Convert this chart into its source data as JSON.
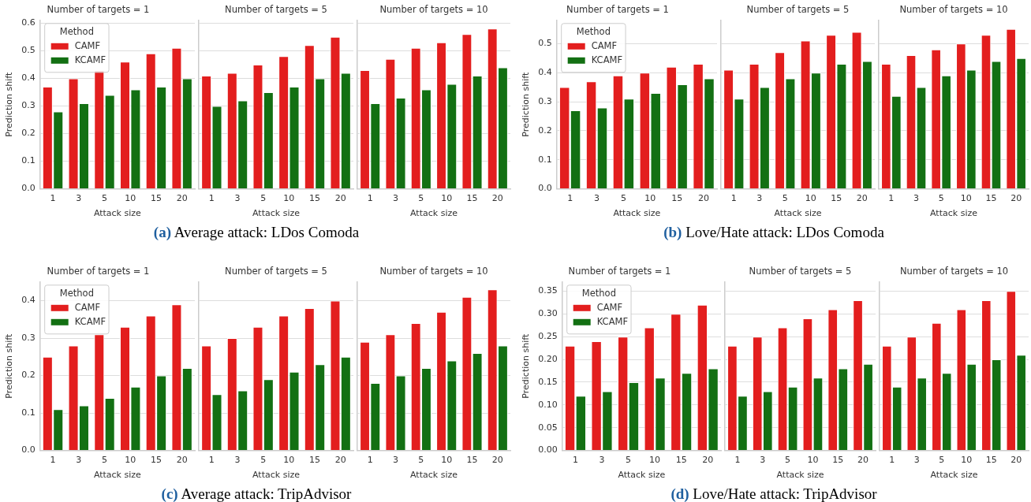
{
  "chart_data": [
    {
      "type": "bar",
      "title": "Number of targets = 1",
      "xlabel": "Attack size",
      "ylabel": "Prediction shift",
      "categories": [
        "1",
        "3",
        "5",
        "10",
        "15",
        "20"
      ],
      "series": [
        {
          "name": "CAMF",
          "color": "#e31e1e",
          "values": [
            0.37,
            0.4,
            0.43,
            0.46,
            0.49,
            0.51
          ]
        },
        {
          "name": "KCAMF",
          "color": "#137013",
          "values": [
            0.28,
            0.31,
            0.34,
            0.36,
            0.37,
            0.4
          ]
        }
      ],
      "ylim": [
        0,
        0.61
      ],
      "yticks": [
        {
          "value": 0,
          "label": "0.0"
        },
        0.1,
        0.2,
        0.3,
        0.4,
        0.5,
        0.6
      ],
      "grid": "y",
      "legend": "top left",
      "legend_title": "Method",
      "annotations": [
        "(a) Average attack: LDos Comoda"
      ]
    },
    {
      "type": "bar",
      "title": "Number of targets = 5",
      "xlabel": "Attack size",
      "categories": [
        "1",
        "3",
        "5",
        "10",
        "15",
        "20"
      ],
      "series": [
        {
          "color": "#e31e1e",
          "values": [
            0.41,
            0.42,
            0.45,
            0.48,
            0.52,
            0.55
          ]
        },
        {
          "color": "#137013",
          "values": [
            0.3,
            0.32,
            0.35,
            0.37,
            0.4,
            0.42
          ]
        }
      ],
      "ylim": [
        0,
        0.61
      ],
      "yticks": [
        0,
        0.1,
        0.2,
        0.3,
        0.4,
        0.5,
        0.6
      ],
      "grid": "y",
      "tick_labels": "x"
    },
    {
      "type": "bar",
      "title": "Number of targets = 10",
      "xlabel": "Attack size",
      "categories": [
        "1",
        "3",
        "5",
        "10",
        "15",
        "20"
      ],
      "series": [
        {
          "color": "#e31e1e",
          "values": [
            0.43,
            0.47,
            0.51,
            0.53,
            0.56,
            0.58
          ]
        },
        {
          "color": "#137013",
          "values": [
            0.31,
            0.33,
            0.36,
            0.38,
            0.41,
            0.44
          ]
        }
      ],
      "ylim": [
        0,
        0.61
      ],
      "yticks": [
        0,
        0.1,
        0.2,
        0.3,
        0.4,
        0.5,
        0.6
      ],
      "grid": "y",
      "tick_labels": "x"
    },
    {
      "type": "bar",
      "title": "Number of targets = 1",
      "xlabel": "Attack size",
      "ylabel": "Prediction shift",
      "categories": [
        "1",
        "3",
        "5",
        "10",
        "15",
        "20"
      ],
      "series": [
        {
          "name": "CAMF",
          "color": "#e31e1e",
          "values": [
            0.35,
            0.37,
            0.39,
            0.4,
            0.42,
            0.43
          ]
        },
        {
          "name": "KCAMF",
          "color": "#137013",
          "values": [
            0.27,
            0.28,
            0.31,
            0.33,
            0.36,
            0.38
          ]
        }
      ],
      "ylim": [
        0,
        0.58
      ],
      "yticks": [
        {
          "value": 0,
          "label": "0.0"
        },
        0.1,
        0.2,
        0.3,
        0.4,
        0.5
      ],
      "grid": "y",
      "legend": "top left",
      "legend_title": "Method",
      "annotations": [
        "(b) Love/Hate attack: LDos Comoda"
      ]
    },
    {
      "type": "bar",
      "title": "Number of targets = 5",
      "xlabel": "Attack size",
      "categories": [
        "1",
        "3",
        "5",
        "10",
        "15",
        "20"
      ],
      "series": [
        {
          "color": "#e31e1e",
          "values": [
            0.41,
            0.43,
            0.47,
            0.51,
            0.53,
            0.54
          ]
        },
        {
          "color": "#137013",
          "values": [
            0.31,
            0.35,
            0.38,
            0.4,
            0.43,
            0.44
          ]
        }
      ],
      "ylim": [
        0,
        0.58
      ],
      "yticks": [
        0,
        0.1,
        0.2,
        0.3,
        0.4,
        0.5
      ],
      "grid": "y",
      "tick_labels": "x"
    },
    {
      "type": "bar",
      "title": "Number of targets = 10",
      "xlabel": "Attack size",
      "categories": [
        "1",
        "3",
        "5",
        "10",
        "15",
        "20"
      ],
      "series": [
        {
          "color": "#e31e1e",
          "values": [
            0.43,
            0.46,
            0.48,
            0.5,
            0.53,
            0.55
          ]
        },
        {
          "color": "#137013",
          "values": [
            0.32,
            0.35,
            0.39,
            0.41,
            0.44,
            0.45
          ]
        }
      ],
      "ylim": [
        0,
        0.58
      ],
      "yticks": [
        0,
        0.1,
        0.2,
        0.3,
        0.4,
        0.5
      ],
      "grid": "y",
      "tick_labels": "x"
    },
    {
      "type": "bar",
      "title": "Number of targets = 1",
      "xlabel": "Attack size",
      "ylabel": "Prediction shift",
      "categories": [
        "1",
        "3",
        "5",
        "10",
        "15",
        "20"
      ],
      "series": [
        {
          "name": "CAMF",
          "color": "#e31e1e",
          "values": [
            0.25,
            0.28,
            0.31,
            0.33,
            0.36,
            0.39
          ]
        },
        {
          "name": "KCAMF",
          "color": "#137013",
          "values": [
            0.11,
            0.12,
            0.14,
            0.17,
            0.2,
            0.22
          ]
        }
      ],
      "ylim": [
        0,
        0.45
      ],
      "yticks": [
        {
          "value": 0,
          "label": "0.0"
        },
        0.1,
        0.2,
        0.3,
        0.4
      ],
      "grid": "y",
      "legend": "top left",
      "legend_title": "Method",
      "annotations": [
        "(c) Average attack: TripAdvisor"
      ]
    },
    {
      "type": "bar",
      "title": "Number of targets = 5",
      "xlabel": "Attack size",
      "categories": [
        "1",
        "3",
        "5",
        "10",
        "15",
        "20"
      ],
      "series": [
        {
          "color": "#e31e1e",
          "values": [
            0.28,
            0.3,
            0.33,
            0.36,
            0.38,
            0.4
          ]
        },
        {
          "color": "#137013",
          "values": [
            0.15,
            0.16,
            0.19,
            0.21,
            0.23,
            0.25
          ]
        }
      ],
      "ylim": [
        0,
        0.45
      ],
      "yticks": [
        0,
        0.1,
        0.2,
        0.3,
        0.4
      ],
      "grid": "y",
      "tick_labels": "x"
    },
    {
      "type": "bar",
      "title": "Number of targets = 10",
      "xlabel": "Attack size",
      "categories": [
        "1",
        "3",
        "5",
        "10",
        "15",
        "20"
      ],
      "series": [
        {
          "color": "#e31e1e",
          "values": [
            0.29,
            0.31,
            0.34,
            0.37,
            0.41,
            0.43
          ]
        },
        {
          "color": "#137013",
          "values": [
            0.18,
            0.2,
            0.22,
            0.24,
            0.26,
            0.28
          ]
        }
      ],
      "ylim": [
        0,
        0.45
      ],
      "yticks": [
        0,
        0.1,
        0.2,
        0.3,
        0.4
      ],
      "grid": "y",
      "tick_labels": "x"
    },
    {
      "type": "bar",
      "title": "Number of targets = 1",
      "xlabel": "Attack size",
      "ylabel": "Prediction shift",
      "categories": [
        "1",
        "3",
        "5",
        "10",
        "15",
        "20"
      ],
      "series": [
        {
          "name": "CAMF",
          "color": "#e31e1e",
          "values": [
            0.23,
            0.24,
            0.25,
            0.27,
            0.3,
            0.32
          ]
        },
        {
          "name": "KCAMF",
          "color": "#137013",
          "values": [
            0.12,
            0.13,
            0.15,
            0.16,
            0.17,
            0.18
          ]
        }
      ],
      "ylim": [
        0,
        0.37
      ],
      "yticks": [
        {
          "value": 0,
          "label": "0.00"
        },
        0.05,
        {
          "value": 0.1,
          "label": "0.10"
        },
        0.15,
        {
          "value": 0.2,
          "label": "0.20"
        },
        0.25,
        {
          "value": 0.3,
          "label": "0.30"
        },
        0.35
      ],
      "grid": "y",
      "legend": "top left",
      "legend_title": "Method",
      "annotations": [
        "(d) Love/Hate attack: TripAdvisor"
      ]
    },
    {
      "type": "bar",
      "title": "Number of targets = 5",
      "xlabel": "Attack size",
      "categories": [
        "1",
        "3",
        "5",
        "10",
        "15",
        "20"
      ],
      "series": [
        {
          "color": "#e31e1e",
          "values": [
            0.23,
            0.25,
            0.27,
            0.29,
            0.31,
            0.33
          ]
        },
        {
          "color": "#137013",
          "values": [
            0.12,
            0.13,
            0.14,
            0.16,
            0.18,
            0.19
          ]
        }
      ],
      "ylim": [
        0,
        0.37
      ],
      "yticks": [
        0,
        0.05,
        0.1,
        0.15,
        0.2,
        0.25,
        0.3,
        0.35
      ],
      "grid": "y",
      "tick_labels": "x"
    },
    {
      "type": "bar",
      "title": "Number of targets = 10",
      "xlabel": "Attack size",
      "categories": [
        "1",
        "3",
        "5",
        "10",
        "15",
        "20"
      ],
      "series": [
        {
          "color": "#e31e1e",
          "values": [
            0.23,
            0.25,
            0.28,
            0.31,
            0.33,
            0.35
          ]
        },
        {
          "color": "#137013",
          "values": [
            0.14,
            0.16,
            0.17,
            0.19,
            0.2,
            0.21
          ]
        }
      ],
      "ylim": [
        0,
        0.37
      ],
      "yticks": [
        0,
        0.05,
        0.1,
        0.15,
        0.2,
        0.25,
        0.3,
        0.35
      ],
      "grid": "y",
      "tick_labels": "x"
    }
  ]
}
